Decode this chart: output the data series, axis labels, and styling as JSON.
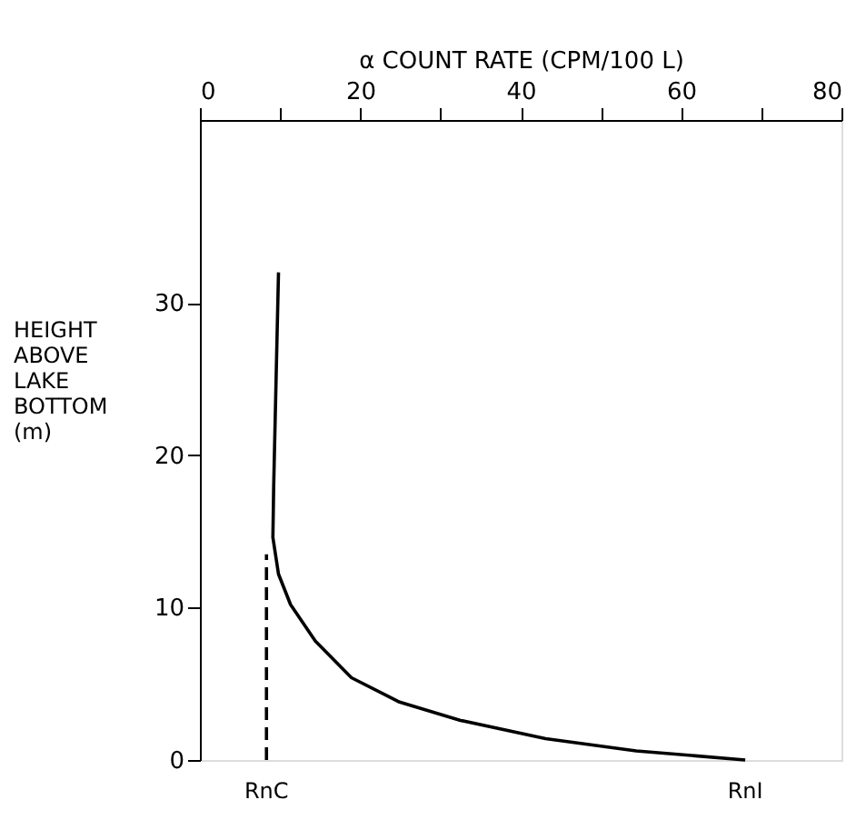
{
  "chart_data": {
    "type": "line",
    "xlabel": "α COUNT RATE (CPM/100 L)",
    "ylabel": "HEIGHT\nABOVE\nLAKE\nBOTTOM\n(m)",
    "xlim": [
      0,
      80
    ],
    "ylim": [
      0,
      42
    ],
    "xticks": [
      0,
      {
        "value": 10,
        "label": null
      },
      20,
      {
        "value": 30,
        "label": null
      },
      40,
      {
        "value": 50,
        "label": null
      },
      60,
      {
        "value": 70,
        "label": null
      },
      80
    ],
    "yticks": [
      0,
      10,
      20,
      30
    ],
    "grid": false,
    "marker": "none",
    "series": [
      {
        "color": "#000000",
        "line_style": "solid",
        "x": [
          9.8,
          9.5,
          9.2,
          9.1,
          9.8,
          11.3,
          14.4,
          18.9,
          24.9,
          32.5,
          43.1,
          54.4,
          68
        ],
        "values": [
          32,
          25,
          18,
          14.6,
          12.2,
          10.2,
          7.8,
          5.4,
          3.8,
          2.6,
          1.4,
          0.6,
          0
        ]
      },
      {
        "color": "#000000",
        "line_style": "dashed",
        "x": [
          8.3,
          8.3
        ],
        "values": [
          0,
          13.5
        ]
      }
    ],
    "annotations": [
      {
        "text": "RnC",
        "x": 8.3,
        "y": 0
      },
      {
        "text": "RnI",
        "x": 68,
        "y": 0
      }
    ]
  }
}
